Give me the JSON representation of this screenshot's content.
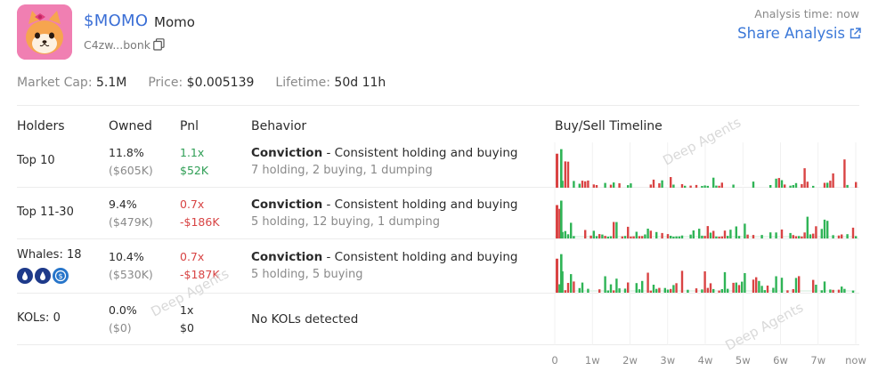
{
  "token": {
    "ticker": "$MOMO",
    "name": "Momo",
    "address": "C4zw...bonk"
  },
  "analysis_time": "Analysis time: now",
  "share_label": "Share Analysis",
  "stats": {
    "market_cap_label": "Market Cap:",
    "market_cap_value": "5.1M",
    "price_label": "Price:",
    "price_value": "$0.005139",
    "lifetime_label": "Lifetime:",
    "lifetime_value": "50d 11h"
  },
  "columns": {
    "holders": "Holders",
    "owned": "Owned",
    "pnl": "Pnl",
    "behavior": "Behavior",
    "timeline": "Buy/Sell Timeline"
  },
  "rows": [
    {
      "holder": "Top 10",
      "owned_pct": "11.8%",
      "owned_usd": "($605K)",
      "pnl_mult": "1.1x",
      "pnl_usd": "$52K",
      "pnl_tone": "green",
      "behavior_label": "Conviction",
      "behavior_desc": " - Consistent holding and buying",
      "behavior_sub": "7 holding, 2 buying, 1 dumping"
    },
    {
      "holder": "Top 11-30",
      "owned_pct": "9.4%",
      "owned_usd": "($479K)",
      "pnl_mult": "0.7x",
      "pnl_usd": "-$186K",
      "pnl_tone": "red",
      "behavior_label": "Conviction",
      "behavior_desc": " - Consistent holding and buying",
      "behavior_sub": "5 holding, 12 buying, 1 dumping"
    },
    {
      "holder": "Whales: 18",
      "owned_pct": "10.4%",
      "owned_usd": "($530K)",
      "pnl_mult": "0.7x",
      "pnl_usd": "-$187K",
      "pnl_tone": "red",
      "behavior_label": "Conviction",
      "behavior_desc": " - Consistent holding and buying",
      "behavior_sub": "5 holding, 5 buying"
    },
    {
      "holder": "KOLs: 0",
      "owned_pct": "0.0%",
      "owned_usd": "($0)",
      "pnl_mult": "1x",
      "pnl_usd": "$0",
      "pnl_tone": "neutral",
      "behavior_label": "",
      "behavior_desc": "",
      "behavior_sub": "No KOLs detected"
    }
  ],
  "whale_icons": [
    "whale-blue-drop-icon",
    "whale-blue-drop-icon",
    "whale-usdc-icon"
  ],
  "watermark": "Deep Agents",
  "chart_data": {
    "type": "bar",
    "title": "Buy/Sell Timeline",
    "x_ticks": [
      "0",
      "1w",
      "2w",
      "3w",
      "4w",
      "5w",
      "6w",
      "7w",
      "now"
    ],
    "colors": {
      "buy": "#2fb456",
      "sell": "#d94444"
    },
    "series": [
      {
        "name": "Top 10",
        "buy": [
          0,
          0,
          4,
          0,
          0,
          12,
          0,
          0,
          20,
          0,
          0,
          0,
          8,
          0,
          3,
          0,
          0,
          0,
          0,
          0,
          0,
          0,
          3,
          0,
          0,
          0,
          4,
          0,
          3,
          0,
          0,
          0,
          0,
          0,
          5,
          0,
          0,
          0,
          0,
          0,
          3,
          0,
          0,
          0,
          0,
          0,
          2,
          0,
          0,
          0,
          0,
          0,
          0,
          0,
          0,
          0,
          0,
          0,
          0,
          0,
          0,
          0,
          0,
          0,
          0,
          0,
          0,
          0,
          0,
          0,
          0,
          0,
          0,
          3,
          0,
          0,
          0,
          0,
          0,
          0,
          0,
          0,
          0,
          0,
          0,
          0,
          0,
          0,
          3,
          0,
          0,
          0,
          0,
          0,
          0,
          0,
          0,
          0,
          0,
          0,
          0,
          0,
          0,
          0,
          0,
          0,
          0,
          0,
          0,
          0,
          0,
          0,
          0,
          0,
          0,
          0,
          0,
          0,
          0,
          0,
          0,
          0,
          0,
          0,
          0,
          0,
          0,
          0,
          0,
          0,
          0,
          0,
          3,
          0,
          0,
          0,
          0,
          3,
          0,
          0,
          0,
          0,
          0,
          0,
          0,
          0,
          3,
          0,
          0,
          0,
          0,
          0,
          0,
          0,
          0,
          0,
          0,
          0,
          0,
          0,
          0,
          0,
          0,
          0,
          0,
          0,
          0,
          0,
          0,
          0,
          0,
          0,
          0,
          3,
          0,
          0,
          0,
          0,
          0,
          0,
          0,
          0,
          0,
          0,
          0,
          0,
          0,
          0,
          0,
          0,
          5,
          0,
          0,
          0,
          0,
          0,
          0,
          0,
          0,
          0,
          0,
          0,
          0,
          0,
          0,
          0,
          0,
          0,
          0,
          0,
          0,
          0,
          0,
          0,
          0,
          0,
          0,
          0,
          0,
          0,
          0,
          0,
          0,
          0,
          0,
          0,
          0,
          0,
          0,
          0,
          0,
          0,
          0,
          0,
          0,
          0,
          0,
          0,
          0,
          0,
          0,
          0,
          0,
          0,
          0,
          3,
          0,
          0,
          0,
          3,
          0,
          0,
          0,
          0,
          0,
          0,
          0,
          0,
          0,
          0,
          0,
          0,
          0,
          0,
          0,
          0,
          0,
          0,
          0,
          5,
          0,
          0,
          0,
          0,
          0,
          0,
          0,
          0,
          0,
          0,
          0,
          0,
          6,
          0,
          0,
          0,
          0,
          0,
          0,
          0,
          0,
          0,
          0,
          0,
          0,
          0,
          0,
          0,
          0,
          0,
          0,
          0,
          0,
          0,
          0,
          0,
          0,
          0,
          0,
          0,
          0,
          0,
          0,
          0,
          0,
          0,
          0,
          5,
          0,
          0,
          0,
          3,
          0,
          0,
          0,
          0,
          0,
          0,
          0,
          8,
          0,
          0,
          0,
          0,
          0,
          0,
          0,
          0,
          0,
          0,
          0,
          0,
          0,
          0,
          0,
          0,
          0,
          0,
          0,
          0,
          4,
          0,
          0,
          0,
          0,
          0,
          10,
          0,
          0,
          5,
          0,
          0,
          0,
          0,
          0,
          0,
          0,
          0,
          0,
          2,
          0,
          0,
          0,
          0,
          0,
          0,
          0,
          0,
          0,
          0,
          0,
          0,
          0,
          0,
          0,
          0,
          0,
          0,
          0,
          0,
          0,
          0,
          3,
          0,
          0,
          0,
          0,
          0,
          0,
          0,
          0,
          0,
          0,
          0,
          3,
          0,
          0,
          0,
          0,
          0,
          0
        ],
        "sell": []
      }
    ]
  }
}
